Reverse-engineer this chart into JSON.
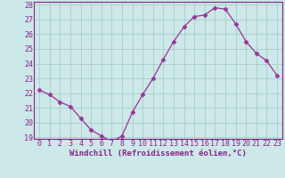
{
  "x": [
    0,
    1,
    2,
    3,
    4,
    5,
    6,
    7,
    8,
    9,
    10,
    11,
    12,
    13,
    14,
    15,
    16,
    17,
    18,
    19,
    20,
    21,
    22,
    23
  ],
  "y": [
    22.2,
    21.9,
    21.4,
    21.1,
    20.3,
    19.5,
    19.1,
    18.7,
    19.1,
    20.7,
    21.9,
    23.0,
    24.3,
    25.5,
    26.5,
    27.2,
    27.3,
    27.8,
    27.7,
    26.7,
    25.5,
    24.7,
    24.2,
    23.2
  ],
  "line_color": "#993399",
  "marker": "D",
  "marker_size": 2.5,
  "bg_color": "#cce8e8",
  "grid_color": "#aacccc",
  "xlabel": "Windchill (Refroidissement éolien,°C)",
  "ylim": [
    19,
    28
  ],
  "xlim": [
    0,
    23
  ],
  "yticks": [
    19,
    20,
    21,
    22,
    23,
    24,
    25,
    26,
    27,
    28
  ],
  "xticks": [
    0,
    1,
    2,
    3,
    4,
    5,
    6,
    7,
    8,
    9,
    10,
    11,
    12,
    13,
    14,
    15,
    16,
    17,
    18,
    19,
    20,
    21,
    22,
    23
  ],
  "tick_color": "#882288",
  "label_fontsize": 6.5,
  "tick_fontsize": 6,
  "spine_color": "#882288"
}
